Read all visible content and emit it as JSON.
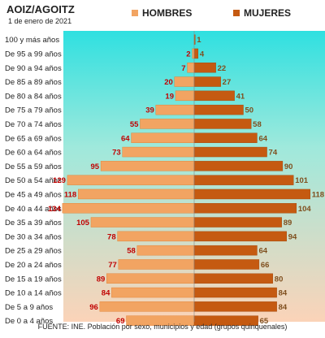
{
  "header": {
    "title": "AOIZ/AGOITZ",
    "date": "1 de enero de 2021"
  },
  "legend": {
    "hombres": "HOMBRES",
    "mujeres": "MUJERES"
  },
  "source": "FUENTE: INE.  Población por sexo, municipios y edad (grupos quinquenales)",
  "colors": {
    "hombres_bar": "#f2a462",
    "mujeres_bar": "#c55a11",
    "hombres_label": "#c00000",
    "mujeres_label": "#7f4f1e",
    "bg_top": "#2fe0e0",
    "bg_bottom": "#fbd3b8"
  },
  "chart_data": {
    "type": "bar",
    "orientation": "horizontal-population-pyramid",
    "categories": [
      "100 y más años",
      "De 95 a 99 años",
      "De 90 a 94 años",
      "De 85 a 89 años",
      "De 80 a 84 años",
      "De 75 a 79 años",
      "De 70 a 74 años",
      "De 65 a 69 años",
      "De 60 a 64 años",
      "De 55 a 59 años",
      "De 50 a 54 años",
      "De 45 a 49 años",
      "De 40 a 44 años",
      "De 35 a 39 años",
      "De 30 a 34 años",
      "De 25 a 29 años",
      "De 20 a 24 años",
      "De 15 a 19 años",
      "De 10 a 14 años",
      "De 5 a 9 años",
      "De 0 a 4 años"
    ],
    "series": [
      {
        "name": "HOMBRES",
        "values": [
          0,
          2,
          7,
          20,
          19,
          39,
          55,
          64,
          73,
          95,
          129,
          118,
          134,
          105,
          78,
          58,
          77,
          89,
          84,
          96,
          69
        ],
        "labels": [
          "",
          "2",
          "7",
          "20",
          "19",
          "39",
          "55",
          "64",
          "73",
          "95",
          "129",
          "118",
          "134",
          "105",
          "78",
          "58",
          "77",
          "89",
          "84",
          "96",
          "69"
        ]
      },
      {
        "name": "MUJERES",
        "values": [
          1,
          4,
          22,
          27,
          41,
          50,
          58,
          64,
          74,
          90,
          101,
          118,
          104,
          89,
          94,
          64,
          66,
          80,
          84,
          84,
          65
        ],
        "labels": [
          "1",
          "4",
          "22",
          "27",
          "41",
          "50",
          "58",
          "64",
          "74",
          "90",
          "101",
          "118",
          "104",
          "89",
          "94",
          "64",
          "66",
          "80",
          "84",
          "84",
          "65"
        ]
      }
    ],
    "xlim": [
      -134,
      134
    ]
  }
}
